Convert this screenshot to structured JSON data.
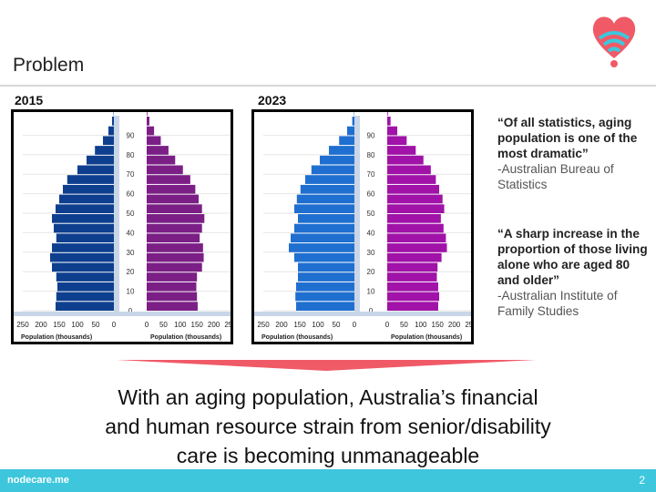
{
  "slide": {
    "title": "Problem",
    "page_number": "2",
    "brand": "nodecare.me",
    "message_lines": [
      "With an aging population, Australia’s financial",
      "and human resource strain from senior/disability",
      "care is becoming unmanageable"
    ],
    "quotes": [
      {
        "text": "“Of all statistics, aging population is one of the most dramatic”",
        "source": "-Australian Bureau of Statistics"
      },
      {
        "text": "“A sharp increase in the proportion of those living alone who are aged 80 and older”",
        "source": "-Australian Institute of Family Studies"
      }
    ],
    "colors": {
      "accent": "#f05a67",
      "footer": "#3ec7dc",
      "male_2015": "#0e3f8f",
      "female_2015": "#7b1f86",
      "male_2023": "#1f6fd0",
      "female_2023": "#a012a8"
    }
  },
  "chart_data": [
    {
      "type": "bar",
      "title": "2015",
      "xlabel_left": "Population (thousands)",
      "xlabel_right": "Population (thousands)",
      "left_ticks": [
        "250",
        "200",
        "150",
        "100",
        "50",
        "0"
      ],
      "right_ticks": [
        "0",
        "50",
        "100",
        "150",
        "200",
        "250"
      ],
      "age_ticks": [
        "0",
        "10",
        "20",
        "30",
        "40",
        "50",
        "60",
        "70",
        "80",
        "90"
      ],
      "xlim": [
        0,
        250
      ],
      "ages": [
        0,
        5,
        10,
        15,
        20,
        25,
        30,
        35,
        40,
        45,
        50,
        55,
        60,
        65,
        70,
        75,
        80,
        85,
        90,
        95,
        100
      ],
      "series": [
        {
          "side": "male",
          "values": [
            160,
            158,
            155,
            158,
            170,
            175,
            170,
            158,
            165,
            170,
            160,
            150,
            140,
            128,
            100,
            75,
            52,
            30,
            15,
            5,
            1
          ]
        },
        {
          "side": "female",
          "values": [
            152,
            150,
            148,
            150,
            165,
            170,
            168,
            158,
            165,
            172,
            165,
            155,
            145,
            130,
            108,
            85,
            65,
            42,
            22,
            8,
            2
          ]
        }
      ]
    },
    {
      "type": "bar",
      "title": "2023",
      "xlabel_left": "Population (thousands)",
      "xlabel_right": "Population (thousands)",
      "left_ticks": [
        "250",
        "200",
        "150",
        "100",
        "50",
        "0"
      ],
      "right_ticks": [
        "0",
        "50",
        "100",
        "150",
        "200",
        "250"
      ],
      "age_ticks": [
        "0",
        "10",
        "20",
        "30",
        "40",
        "50",
        "60",
        "70",
        "80",
        "90"
      ],
      "xlim": [
        0,
        250
      ],
      "ages": [
        0,
        5,
        10,
        15,
        20,
        25,
        30,
        35,
        40,
        45,
        50,
        55,
        60,
        65,
        70,
        75,
        80,
        85,
        90,
        95,
        100
      ],
      "series": [
        {
          "side": "male",
          "values": [
            160,
            162,
            160,
            155,
            155,
            165,
            180,
            175,
            165,
            155,
            165,
            158,
            148,
            135,
            118,
            95,
            70,
            42,
            20,
            6,
            1
          ]
        },
        {
          "side": "female",
          "values": [
            152,
            155,
            152,
            148,
            150,
            162,
            178,
            175,
            168,
            160,
            170,
            165,
            155,
            145,
            130,
            108,
            85,
            58,
            30,
            10,
            2
          ]
        }
      ]
    }
  ]
}
